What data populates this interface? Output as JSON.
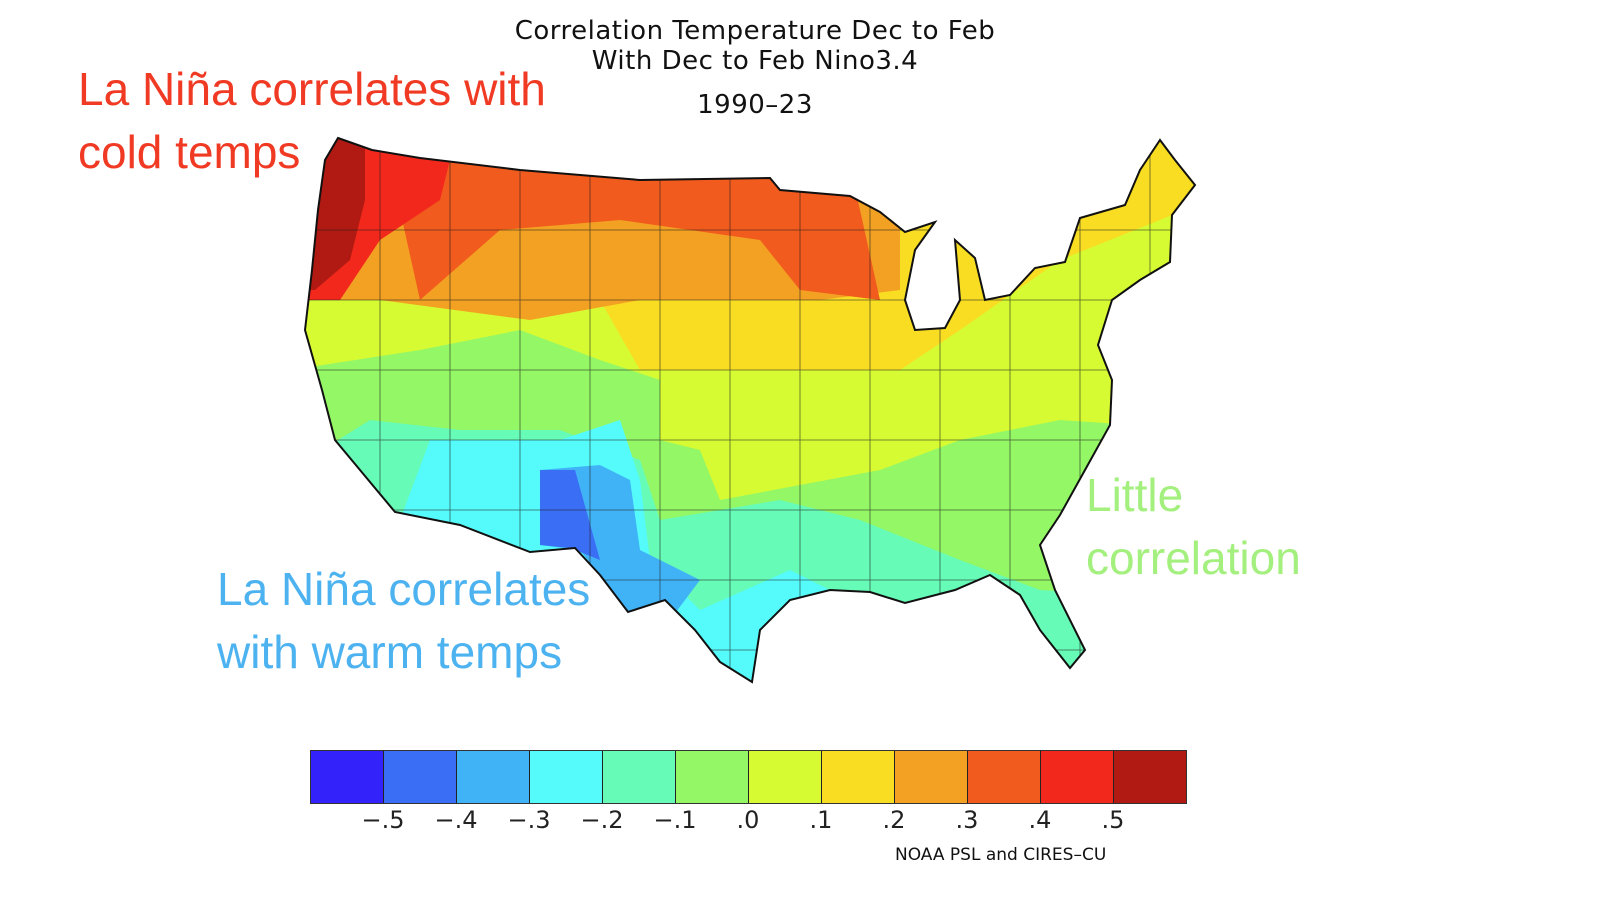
{
  "title": {
    "line1": "Correlation Temperature Dec to Feb",
    "line2": "With Dec to Feb Nino3.4",
    "period": "1990–23"
  },
  "annotations": [
    {
      "id": "cold",
      "line1": "La Niña correlates with",
      "line2": "cold temps",
      "color": "#f03a24"
    },
    {
      "id": "warm",
      "line1": "La Niña correlates",
      "line2": "with warm temps",
      "color": "#4db3f0"
    },
    {
      "id": "little",
      "line1": "Little",
      "line2": "correlation",
      "color": "#a4f07e"
    }
  ],
  "legend": {
    "colors": [
      "#3322fa",
      "#3a6ef5",
      "#40b3f7",
      "#55fbfb",
      "#66fbb6",
      "#94f766",
      "#d7fb33",
      "#f8dd22",
      "#f3a122",
      "#f15b1d",
      "#f2281c",
      "#b01a12"
    ],
    "ticks": [
      "−.5",
      "−.4",
      "−.3",
      "−.2",
      "−.1",
      ".0",
      ".1",
      ".2",
      ".3",
      ".4",
      ".5"
    ]
  },
  "credit": "NOAA PSL and CIRES–CU"
}
